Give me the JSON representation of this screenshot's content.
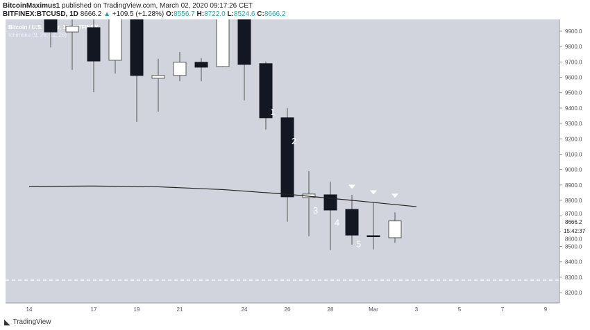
{
  "header": {
    "author": "BitcoinMaximus1",
    "published": "published on TradingView.com, March 02, 2020 09:17:26 CET",
    "symbol": "BITFINEX:BTCUSD, 1D",
    "last": "8666.2",
    "change": "+109.5 (+1.28%)",
    "o_label": "O:",
    "o": "8556.7",
    "h_label": "H:",
    "h": "8722.0",
    "l_label": "L:",
    "l": "8524.6",
    "c_label": "C:",
    "c": "8666.2"
  },
  "footer": {
    "logo_text": "TradingView"
  },
  "chart_data": {
    "type": "candlestick",
    "title": "Bitcoin / U.S. Dollar, 1D, BITFINEX",
    "indicator": "Ichimoku (9, 26, 52, 26)",
    "ylim": [
      8150,
      9980
    ],
    "yticks": [
      9900,
      9800,
      9700,
      9600,
      9500,
      9400,
      9300,
      9200,
      9100,
      9000,
      8900,
      8800,
      8700,
      8600,
      8500,
      8400,
      8300,
      8200
    ],
    "ytick_labels": [
      "9900.0",
      "9800.0",
      "9700.0",
      "9600.0",
      "9500.0",
      "9400.0",
      "9300.0",
      "9200.0",
      "9100.0",
      "9000.0",
      "8900.0",
      "8800.0",
      "8700.0",
      "8600.0",
      "8500.0",
      "8400.0",
      "8300.0",
      "8200.0"
    ],
    "xticks": [
      {
        "label": "14",
        "day": 0
      },
      {
        "label": "17",
        "day": 3
      },
      {
        "label": "19",
        "day": 5
      },
      {
        "label": "21",
        "day": 7
      },
      {
        "label": "24",
        "day": 10
      },
      {
        "label": "26",
        "day": 12
      },
      {
        "label": "28",
        "day": 14
      },
      {
        "label": "Mar",
        "day": 16
      },
      {
        "label": "3",
        "day": 18
      },
      {
        "label": "5",
        "day": 20
      },
      {
        "label": "7",
        "day": 22
      },
      {
        "label": "9",
        "day": 24
      }
    ],
    "candles": [
      {
        "date": "2020-02-15",
        "o": 10050,
        "h": 10100,
        "l": 9795,
        "c": 9895
      },
      {
        "date": "2020-02-16",
        "o": 9895,
        "h": 10050,
        "l": 9648,
        "c": 9932
      },
      {
        "date": "2020-02-17",
        "o": 9923,
        "h": 10000,
        "l": 9503,
        "c": 9706
      },
      {
        "date": "2020-02-18",
        "o": 9711,
        "h": 10150,
        "l": 9625,
        "c": 10100
      },
      {
        "date": "2020-02-19",
        "o": 10100,
        "h": 10150,
        "l": 9310,
        "c": 9612
      },
      {
        "date": "2020-02-20",
        "o": 9594,
        "h": 9720,
        "l": 9377,
        "c": 9612
      },
      {
        "date": "2020-02-21",
        "o": 9612,
        "h": 9765,
        "l": 9575,
        "c": 9698
      },
      {
        "date": "2020-02-22",
        "o": 9698,
        "h": 9725,
        "l": 9575,
        "c": 9666
      },
      {
        "date": "2020-02-23",
        "o": 9670,
        "h": 10150,
        "l": 9666,
        "c": 10100
      },
      {
        "date": "2020-02-24",
        "o": 10100,
        "h": 10150,
        "l": 9450,
        "c": 9684
      },
      {
        "date": "2020-02-25",
        "o": 9689,
        "h": 9702,
        "l": 9261,
        "c": 9337
      },
      {
        "date": "2020-02-26",
        "o": 9337,
        "h": 9400,
        "l": 8661,
        "c": 8823
      },
      {
        "date": "2020-02-27",
        "o": 8818,
        "h": 8990,
        "l": 8567,
        "c": 8841
      },
      {
        "date": "2020-02-28",
        "o": 8836,
        "h": 8922,
        "l": 8476,
        "c": 8737
      },
      {
        "date": "2020-02-29",
        "o": 8741,
        "h": 8836,
        "l": 8512,
        "c": 8574
      },
      {
        "date": "2020-03-01",
        "o": 8570,
        "h": 8787,
        "l": 8481,
        "c": 8567
      },
      {
        "date": "2020-03-02",
        "o": 8556.7,
        "h": 8722,
        "l": 8524.6,
        "c": 8666.2
      }
    ],
    "ichimoku_line": [
      [
        -1,
        8890
      ],
      [
        2,
        8893
      ],
      [
        5,
        8888
      ],
      [
        8,
        8870
      ],
      [
        11,
        8840
      ],
      [
        14,
        8800
      ],
      [
        17,
        8759
      ]
    ],
    "support_dashed": 8281,
    "annotations": [
      {
        "text": "1",
        "date_idx": 10,
        "price": 9355
      },
      {
        "text": "2",
        "date_idx": 11,
        "price": 9165
      },
      {
        "text": "3",
        "date_idx": 12,
        "price": 8715
      },
      {
        "text": "4",
        "date_idx": 13,
        "price": 8635
      },
      {
        "text": "5",
        "date_idx": 14,
        "price": 8495
      }
    ],
    "markers": [
      {
        "type": "down-arrow",
        "date_idx": 14,
        "price": 8888
      },
      {
        "type": "down-arrow",
        "date_idx": 15,
        "price": 8852
      },
      {
        "type": "down-arrow",
        "date_idx": 16,
        "price": 8830
      }
    ],
    "last_price_label": "8666.2",
    "countdown": "15:42:37",
    "colors": {
      "background": "#d1d4dc",
      "bear": "#131722",
      "bull": "#ffffff",
      "wick": "#555",
      "ichimoku": "#222",
      "text_green": "#26a69a"
    }
  }
}
